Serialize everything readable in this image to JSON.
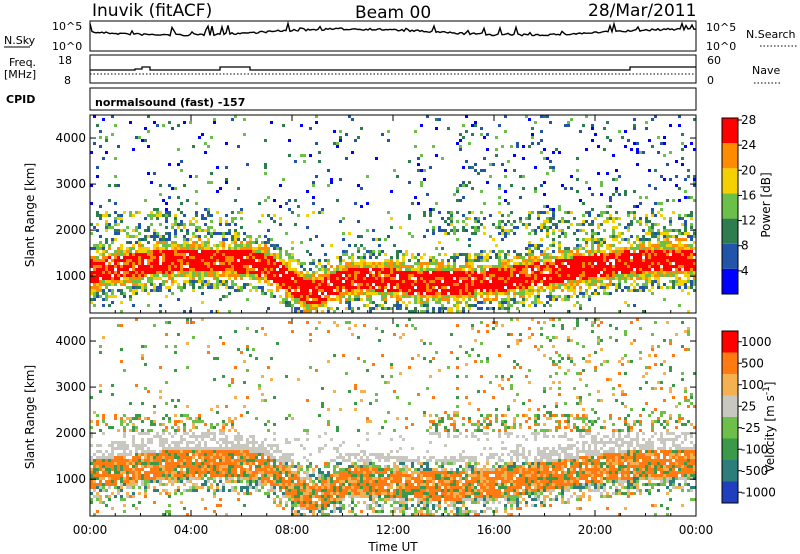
{
  "header": {
    "station": "Inuvik (fitACF)",
    "beam": "Beam 00",
    "date": "28/Mar/2011"
  },
  "top_strip": {
    "left_label": "N.Sky",
    "right_label": "N.Search",
    "left_ticks": [
      "10^5",
      "10^0"
    ],
    "right_ticks": [
      "10^5",
      "10^0"
    ],
    "line_color": "#000000"
  },
  "freq_strip": {
    "left_label": "Freq.",
    "left_unit": "[MHz]",
    "right_label": "Nave",
    "left_ticks": [
      "18",
      "8"
    ],
    "right_ticks": [
      "60",
      "0"
    ]
  },
  "cpid": {
    "label": "CPID",
    "value": "normalsound (fast) -157"
  },
  "chart_data": [
    {
      "type": "heatmap",
      "name_hint": "power",
      "ylabel": "Slant Range [km]",
      "colorbar_label": "Power [dB]",
      "ylim": [
        200,
        4500
      ],
      "y_ticks": [
        "1000",
        "2000",
        "3000",
        "4000"
      ],
      "colorbar_ticks": [
        "4",
        "8",
        "12",
        "16",
        "20",
        "24",
        "28"
      ],
      "colorbar_colors": [
        "#0000ff",
        "#2255aa",
        "#2e7d4f",
        "#6cc04a",
        "#f5d000",
        "#ff8c00",
        "#ff0000"
      ]
    },
    {
      "type": "heatmap",
      "name_hint": "velocity",
      "ylabel": "Slant Range [km]",
      "colorbar_label": "Velocity [m s^-1]",
      "ylim": [
        200,
        4500
      ],
      "y_ticks": [
        "1000",
        "2000",
        "3000",
        "4000"
      ],
      "colorbar_ticks": [
        "1000",
        "500",
        "100",
        "25",
        "-25",
        "-100",
        "-500",
        "-1000"
      ],
      "colorbar_colors": [
        "#1f3fbf",
        "#2e7d7d",
        "#3a9a4a",
        "#6cc04a",
        "#c8c8c0",
        "#f5b050",
        "#ff7a10",
        "#ff0000"
      ]
    }
  ],
  "x_axis": {
    "label": "Time UT",
    "ticks": [
      "00:00",
      "04:00",
      "08:00",
      "12:00",
      "16:00",
      "20:00",
      "00:00"
    ]
  }
}
